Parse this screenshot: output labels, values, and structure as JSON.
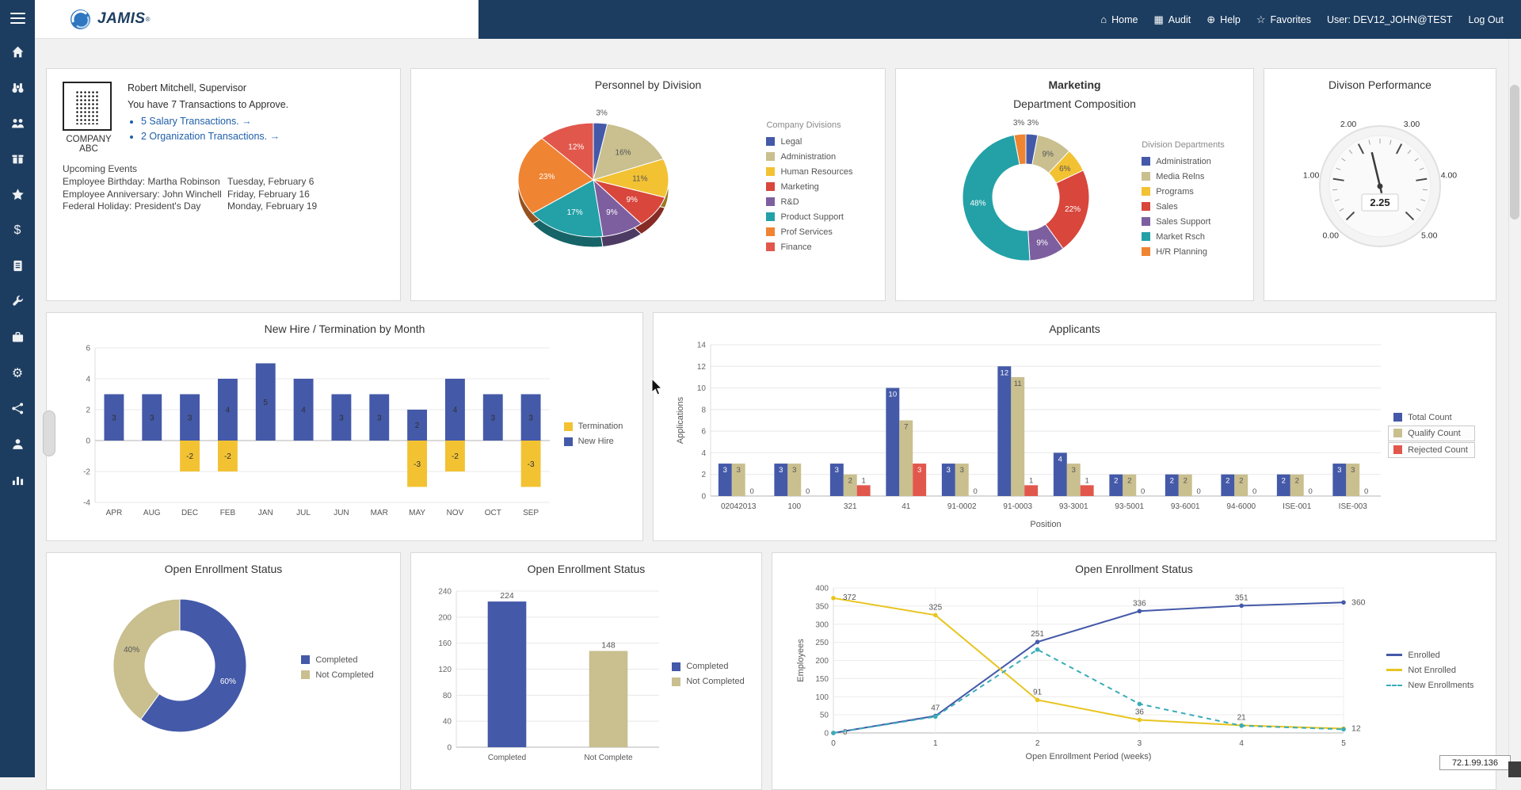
{
  "topbar": {
    "brand": "JAMIS",
    "brand_reg": "®",
    "nav": [
      {
        "icon": "home-icon",
        "glyph": "⌂",
        "label": "Home"
      },
      {
        "icon": "audit-icon",
        "glyph": "▦",
        "label": "Audit"
      },
      {
        "icon": "help-icon",
        "glyph": "⊕",
        "label": "Help"
      },
      {
        "icon": "favorites-icon",
        "glyph": "☆",
        "label": "Favorites"
      },
      {
        "label": "User: DEV12_JOHN@TEST"
      },
      {
        "label": "Log Out"
      }
    ]
  },
  "sidebar": {
    "items": [
      {
        "icon": "home-icon"
      },
      {
        "icon": "binoculars-icon"
      },
      {
        "icon": "users-icon"
      },
      {
        "icon": "gift-icon"
      },
      {
        "icon": "star-icon"
      },
      {
        "icon": "dollar-icon",
        "glyph": "$"
      },
      {
        "icon": "ledger-icon"
      },
      {
        "icon": "wrench-icon"
      },
      {
        "icon": "briefcase-icon"
      },
      {
        "icon": "cogs-icon",
        "glyph": "⚙"
      },
      {
        "icon": "network-icon"
      },
      {
        "icon": "user-icon"
      },
      {
        "icon": "chart-icon"
      }
    ]
  },
  "profile": {
    "company": "COMPANY ABC",
    "name_line": "Robert Mitchell, Supervisor",
    "approve_line": "You have 7 Transactions to Approve.",
    "links": [
      {
        "label": "5 Salary Transactions.",
        "arrow": "→"
      },
      {
        "label": "2 Organization Transactions.",
        "arrow": "→"
      }
    ],
    "events_title": "Upcoming Events",
    "events": [
      {
        "label": "Employee Birthday: Martha Robinson",
        "date": "Tuesday, February 6"
      },
      {
        "label": "Employee Anniversary: John Winchell",
        "date": "Friday, February 16"
      },
      {
        "label": "Federal Holiday: President's Day",
        "date": "Monday, February 19"
      }
    ]
  },
  "footer": {
    "ip": "72.1.99.136"
  },
  "chart_data": [
    {
      "id": "personnel",
      "type": "pie",
      "title": "Personnel by Division",
      "legend_title": "Company Divisions",
      "labels": [
        "Legal",
        "Administration",
        "Human Resources",
        "Marketing",
        "R&D",
        "Product Support",
        "Prof Services",
        "Finance"
      ],
      "values": [
        3,
        16,
        11,
        9,
        9,
        17,
        23,
        12
      ],
      "colors": [
        "#4459a8",
        "#c9bf8f",
        "#f2c233",
        "#d8463c",
        "#7d5fa0",
        "#23a1a7",
        "#ef8432",
        "#e2574c"
      ]
    },
    {
      "id": "dept",
      "type": "donut",
      "title_top": "Marketing",
      "title": "Department Composition",
      "legend_title": "Division Departments",
      "labels": [
        "Administration",
        "Media Relns",
        "Programs",
        "Sales",
        "Sales Support",
        "Market Rsch",
        "H/R Planning"
      ],
      "values": [
        3,
        9,
        6,
        22,
        9,
        48,
        3
      ],
      "colors": [
        "#4459a8",
        "#c9bf8f",
        "#f2c233",
        "#d8463c",
        "#7d5fa0",
        "#23a1a7",
        "#ef8432"
      ]
    },
    {
      "id": "gauge",
      "type": "gauge",
      "title": "Divison Performance",
      "value": 2.25,
      "min": 0,
      "max": 5,
      "tick_labels": [
        "0.00",
        "1.00",
        "2.00",
        "3.00",
        "4.00",
        "5.00"
      ]
    },
    {
      "id": "newhire",
      "type": "bar",
      "title": "New Hire / Termination by Month",
      "categories": [
        "APR",
        "AUG",
        "DEC",
        "FEB",
        "JAN",
        "JUL",
        "JUN",
        "MAR",
        "MAY",
        "NOV",
        "OCT",
        "SEP"
      ],
      "series": [
        {
          "name": "Termination",
          "color": "#f2c233",
          "values": [
            0,
            0,
            -2,
            -2,
            0,
            0,
            0,
            0,
            -3,
            -2,
            0,
            -3
          ]
        },
        {
          "name": "New Hire",
          "color": "#4459a8",
          "values": [
            3,
            3,
            3,
            4,
            5,
            4,
            3,
            3,
            2,
            4,
            3,
            3
          ]
        }
      ],
      "ylim": [
        -4,
        6
      ],
      "yticks": [
        -4,
        -2,
        0,
        2,
        4,
        6
      ]
    },
    {
      "id": "applicants",
      "type": "bar",
      "title": "Applicants",
      "xlabel": "Position",
      "ylabel": "Applications",
      "categories": [
        "02042013",
        "100",
        "321",
        "41",
        "91-0002",
        "91-0003",
        "93-3001",
        "93-5001",
        "93-6001",
        "94-6000",
        "ISE-001",
        "ISE-003"
      ],
      "series": [
        {
          "name": "Total Count",
          "color": "#4459a8",
          "values": [
            3,
            3,
            3,
            10,
            3,
            12,
            4,
            2,
            2,
            2,
            2,
            3
          ]
        },
        {
          "name": "Qualify Count",
          "color": "#c9bf8f",
          "values": [
            3,
            3,
            2,
            7,
            3,
            11,
            3,
            2,
            2,
            2,
            2,
            3
          ]
        },
        {
          "name": "Rejected Count",
          "color": "#e2574c",
          "values": [
            0,
            0,
            1,
            3,
            0,
            1,
            1,
            0,
            0,
            0,
            0,
            0
          ]
        }
      ],
      "ylim": [
        0,
        14
      ],
      "yticks": [
        0,
        2,
        4,
        6,
        8,
        10,
        12,
        14
      ]
    },
    {
      "id": "enroll_donut",
      "type": "donut",
      "title": "Open Enrollment Status",
      "labels": [
        "Completed",
        "Not Completed"
      ],
      "values": [
        60,
        40
      ],
      "colors": [
        "#4459a8",
        "#c9bf8f"
      ]
    },
    {
      "id": "enroll_bar",
      "type": "bar",
      "title": "Open Enrollment Status",
      "categories": [
        "Completed",
        "Not Complete"
      ],
      "values": [
        224,
        148
      ],
      "bar_colors": [
        "#4459a8",
        "#c9bf8f"
      ],
      "legend": [
        "Completed",
        "Not Completed"
      ],
      "ylim": [
        0,
        240
      ],
      "yticks": [
        0,
        40,
        80,
        120,
        160,
        200,
        240
      ]
    },
    {
      "id": "enroll_line",
      "type": "line",
      "title": "Open Enrollment Status",
      "xlabel": "Open Enrollment Period (weeks)",
      "ylabel": "Employees",
      "x": [
        0,
        1,
        2,
        3,
        4,
        5
      ],
      "xticks": [
        "0",
        "1",
        "2",
        "3",
        "4",
        "5"
      ],
      "ylim": [
        0,
        400
      ],
      "yticks": [
        0,
        50,
        100,
        150,
        200,
        250,
        300,
        350,
        400
      ],
      "series": [
        {
          "name": "Enrolled",
          "color": "#4459a8",
          "dash": false,
          "values": [
            0,
            47,
            251,
            336,
            351,
            360
          ],
          "point_labels": [
            "0",
            "47",
            "251",
            "336",
            "351",
            ""
          ]
        },
        {
          "name": "Not Enrolled",
          "color": "#e8c520",
          "dash": false,
          "values": [
            372,
            325,
            91,
            36,
            21,
            12
          ],
          "point_labels": [
            "372",
            "325",
            "91",
            "36",
            "21",
            ""
          ]
        },
        {
          "name": "New Enrollments",
          "color": "#3aacb8",
          "dash": true,
          "values": [
            0,
            45,
            230,
            80,
            20,
            10
          ],
          "point_labels": [
            "",
            "",
            "",
            "",
            "",
            ""
          ]
        }
      ],
      "end_labels": [
        "360",
        "12"
      ]
    }
  ]
}
